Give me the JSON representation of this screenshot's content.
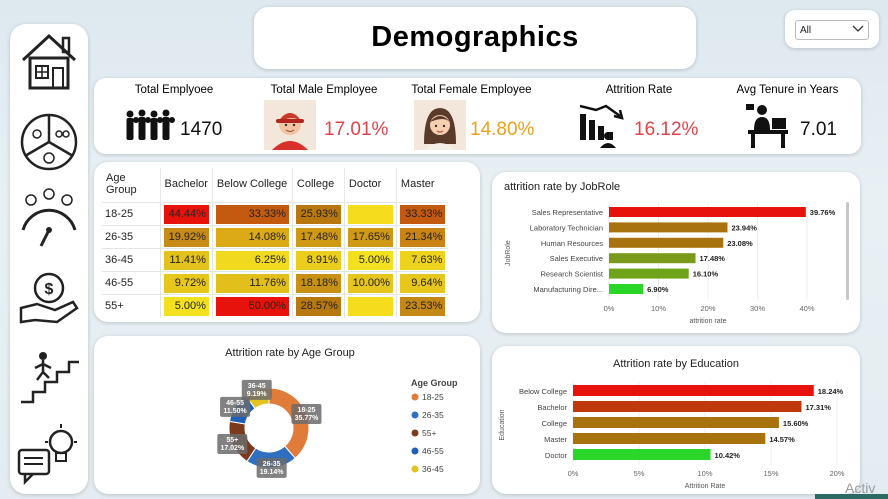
{
  "title": "Demographics",
  "filter": {
    "selected": "All"
  },
  "sidebar": {
    "icons": [
      "house-icon",
      "pie-segments-icon",
      "gauge-icon",
      "money-hand-icon",
      "career-stairs-icon",
      "idea-chat-icon"
    ]
  },
  "kpis": [
    {
      "label": "Total Emplyoee",
      "value": "1470",
      "icon": "crowd-icon",
      "color": "#111111"
    },
    {
      "label": "Total Male Employee",
      "value": "17.01%",
      "icon": "male-avatar-icon",
      "color": "#e0434b"
    },
    {
      "label": "Total Female Employee",
      "value": "14.80%",
      "icon": "female-avatar-icon",
      "color": "#e6a11d"
    },
    {
      "label": "Attrition Rate",
      "value": "16.12%",
      "icon": "attrition-chart-icon",
      "color": "#e0434b"
    },
    {
      "label": "Avg Tenure in Years",
      "value": "7.01",
      "icon": "desk-worker-icon",
      "color": "#111111"
    }
  ],
  "heatmap": {
    "columns": [
      "Age Group",
      "Bachelor",
      "Below College",
      "College",
      "Doctor",
      "Master"
    ],
    "rows": [
      {
        "label": "18-25",
        "values": [
          "44.44%",
          "33.33%",
          "25.93%",
          "",
          "33.33%"
        ],
        "colors": [
          "#e8120c",
          "#c45a10",
          "#b9780f",
          "#f5dd1e",
          "#c45a10"
        ]
      },
      {
        "label": "26-35",
        "values": [
          "19.92%",
          "14.08%",
          "17.48%",
          "17.65%",
          "21.34%"
        ],
        "colors": [
          "#c98b18",
          "#dbaa16",
          "#cf9815",
          "#cf9815",
          "#c98415"
        ]
      },
      {
        "label": "36-45",
        "values": [
          "11.41%",
          "6.25%",
          "8.91%",
          "5.00%",
          "7.63%"
        ],
        "colors": [
          "#e2c21b",
          "#f0d91e",
          "#ebcd1d",
          "#f3e11f",
          "#eed31d"
        ]
      },
      {
        "label": "46-55",
        "values": [
          "9.72%",
          "11.76%",
          "18.18%",
          "10.00%",
          "9.64%"
        ],
        "colors": [
          "#e8c71c",
          "#e2bf1b",
          "#c99114",
          "#e6c51c",
          "#e8c71c"
        ]
      },
      {
        "label": "55+",
        "values": [
          "5.00%",
          "50.00%",
          "28.57%",
          "",
          "23.53%"
        ],
        "colors": [
          "#f3e11f",
          "#e8120c",
          "#b6780f",
          "#f5dd1e",
          "#c38816"
        ]
      }
    ]
  },
  "chart_data": [
    {
      "type": "bar",
      "orientation": "horizontal",
      "title": "attrition rate by JobRole",
      "xlabel": "attrition rate",
      "ylabel": "JobRole",
      "categories": [
        "Sales Representative",
        "Laboratory Technician",
        "Human Resources",
        "Sales Executive",
        "Research Scientist",
        "Manufacturing Dire..."
      ],
      "values": [
        39.76,
        23.94,
        23.08,
        17.48,
        16.1,
        6.9
      ],
      "labels": [
        "39.76%",
        "23.94%",
        "23.08%",
        "17.48%",
        "16.10%",
        "6.90%"
      ],
      "colors": [
        "#e8120c",
        "#a8720f",
        "#a8720f",
        "#7a9a1a",
        "#6fa31a",
        "#2bd62b"
      ],
      "ticks": [
        "0%",
        "10%",
        "20%",
        "30%",
        "40%"
      ],
      "xlim": [
        0,
        40
      ]
    },
    {
      "type": "bar",
      "orientation": "horizontal",
      "title": "Attrition rate by Education",
      "xlabel": "Attrition Rate",
      "ylabel": "Education",
      "categories": [
        "Below College",
        "Bachelor",
        "College",
        "Master",
        "Doctor"
      ],
      "values": [
        18.24,
        17.31,
        15.6,
        14.57,
        10.42
      ],
      "labels": [
        "18.24%",
        "17.31%",
        "15.60%",
        "14.57%",
        "10.42%"
      ],
      "colors": [
        "#e8120c",
        "#c0390d",
        "#a8720f",
        "#a8720f",
        "#2bd62b"
      ],
      "ticks": [
        "0%",
        "5%",
        "10%",
        "15%",
        "20%"
      ],
      "xlim": [
        0,
        20
      ]
    },
    {
      "type": "pie",
      "variant": "donut",
      "title": "Attrition rate by Age Group",
      "legend_title": "Age Group",
      "legend_position": "right",
      "categories": [
        "18-25",
        "26-35",
        "55+",
        "46-55",
        "36-45"
      ],
      "values": [
        35.77,
        19.14,
        17.02,
        11.5,
        9.19
      ],
      "labels": [
        "18-25\n35.77%",
        "26-35\n19.14%",
        "55+\n17.02%",
        "46-55\n11.50%",
        "36-45\n9.19%"
      ],
      "colors": [
        "#e07b39",
        "#2f6fc2",
        "#7b3a1b",
        "#1f5fb8",
        "#e3c320"
      ]
    }
  ],
  "watermark": "Activ"
}
